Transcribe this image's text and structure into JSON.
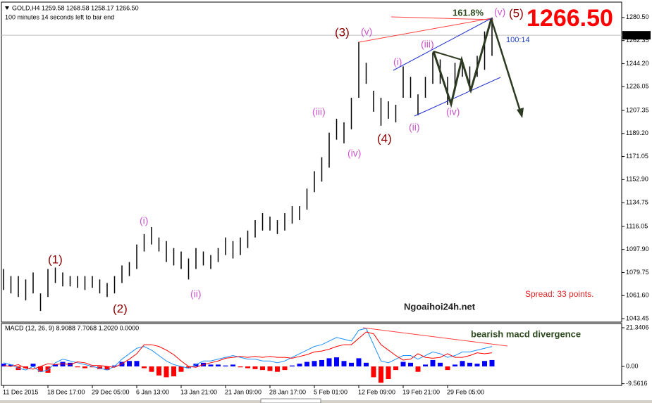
{
  "chart_data": [
    {
      "type": "range",
      "title": "GOLD,H4  1259.58 1268.58 1258.17 1266.50",
      "subtitle": "100 minutes 14 seconds left to bar end",
      "color": "#000000",
      "high": [
        1082.5,
        1077,
        1077,
        1074.3,
        1079.8,
        1063.3,
        1082.5,
        1083.6,
        1079.8,
        1077,
        1077,
        1077,
        1077,
        1074.3,
        1071.5,
        1077,
        1085.3,
        1088,
        1101.8,
        1110,
        1115.5,
        1107.3,
        1104.5,
        1099,
        1096.3,
        1090.8,
        1099,
        1096.3,
        1093.5,
        1099,
        1107.3,
        1104.5,
        1107.3,
        1112.8,
        1121,
        1126.5,
        1123.8,
        1121,
        1126.5,
        1132,
        1132,
        1145.8,
        1159.5,
        1170.5,
        1189.8,
        1200.8,
        1198,
        1217.3,
        1261.3,
        1244.8,
        1222.8,
        1217.3,
        1214.5,
        1211.8,
        1242,
        1233.8,
        1220,
        1233.8,
        1253,
        1247.5,
        1233.8,
        1244.8,
        1247.5,
        1242,
        1250.3,
        1269.5,
        1280.5
      ],
      "low": [
        1066,
        1063.3,
        1060.5,
        1057.8,
        1063.3,
        1049.5,
        1060.5,
        1071.5,
        1068.8,
        1068.8,
        1067.7,
        1066,
        1067.7,
        1063.3,
        1060.5,
        1063.3,
        1071.5,
        1077,
        1082.5,
        1096.3,
        1101.8,
        1096.3,
        1088,
        1085.3,
        1082.5,
        1074.3,
        1082.5,
        1085.3,
        1082.5,
        1088,
        1093.5,
        1090.8,
        1093.5,
        1099,
        1107.3,
        1112.8,
        1112.8,
        1110,
        1112.8,
        1118.3,
        1121,
        1129.3,
        1143,
        1151.3,
        1162.3,
        1184.3,
        1181.5,
        1192.5,
        1217.3,
        1228.3,
        1206.3,
        1195.3,
        1200.8,
        1198,
        1217.3,
        1217.3,
        1203.5,
        1217.3,
        1228.3,
        1228.3,
        1211.8,
        1222.8,
        1233.8,
        1222.8,
        1233.8,
        1239.3,
        1250.3
      ],
      "ylim": [
        1040.7,
        1291.5
      ],
      "yticks": [
        {
          "value": 1280.5,
          "label": "1280.50"
        },
        1262.35,
        {
          "value": 1244.2,
          "label": "1244.20"
        },
        1226.05,
        1207.35,
        {
          "value": 1189.2,
          "label": "1189.20"
        },
        1171.05,
        {
          "value": 1152.9,
          "label": "1152.90"
        },
        1134.75,
        1116.05,
        {
          "value": 1097.9,
          "label": "1097.90"
        },
        1079.75,
        {
          "value": 1061.6,
          "label": "1061.60"
        },
        1043.45
      ],
      "last_price": {
        "value": 1266.5,
        "label": "1266.50"
      },
      "annotations": [
        "(1)",
        "(2)",
        "(3)",
        "(4)",
        "(5)",
        "(v)",
        "(i)",
        "(ii)",
        "(iii)",
        "(iv)",
        "(i)",
        "(ii)",
        "(iii)",
        "(iv)",
        "(v)",
        "161.8%",
        "1266.50",
        "100:14",
        "Ngoaihoi24h.net",
        "Spread: 33 points."
      ]
    },
    {
      "type": "macd",
      "title": "MACD (12, 26, 9) 8.9088 7.7068 1.2020 0.0000",
      "categories": [
        "11 Dec 2015",
        null,
        null,
        null,
        null,
        null,
        "18 Dec 17:00",
        null,
        null,
        null,
        null,
        null,
        "29 Dec 05:00",
        null,
        null,
        null,
        null,
        null,
        "6 Jan 13:00",
        null,
        null,
        null,
        null,
        null,
        "13 Jan 21:00",
        null,
        null,
        null,
        null,
        null,
        "21 Jan 09:00",
        null,
        null,
        null,
        null,
        null,
        "28 Jan 17:00",
        null,
        null,
        null,
        null,
        null,
        "5 Feb 01:00",
        null,
        null,
        null,
        null,
        null,
        "12 Feb 09:00",
        null,
        null,
        null,
        null,
        null,
        "19 Feb 21:00",
        null,
        null,
        null,
        null,
        null,
        "29 Feb 05:00",
        null,
        null,
        null,
        null,
        null,
        null
      ],
      "histogram": [
        1.5,
        1,
        -2,
        -1,
        1.5,
        -3,
        -3.5,
        1,
        2.5,
        2,
        -0.5,
        -1,
        -0.5,
        -1.5,
        -2,
        0.5,
        2.5,
        3,
        3,
        -1,
        -3,
        -5,
        -6,
        -5.5,
        -3,
        -1,
        1.5,
        2,
        1,
        1,
        0.5,
        1,
        -0.5,
        -1,
        -1.5,
        -2,
        -2.5,
        -3,
        -2,
        0.5,
        1.5,
        2.5,
        3,
        3.5,
        4.5,
        5,
        3,
        2,
        4.5,
        2,
        -6,
        -9,
        -7,
        -2,
        2.5,
        2,
        -3,
        1,
        3.5,
        2,
        -2,
        1,
        3,
        2,
        1.5,
        3,
        3.5
      ],
      "positive_color": "#0000ff",
      "negative_color": "#ff0000",
      "macd": [
        2,
        1,
        -1,
        -2,
        0,
        -3,
        -2,
        2,
        4,
        3,
        2,
        1,
        0,
        -1,
        -2,
        0,
        4,
        7,
        10,
        11,
        9,
        6,
        3,
        1,
        0,
        -1,
        1,
        3,
        3,
        4,
        5,
        6,
        5,
        4,
        4,
        3,
        3,
        2,
        3,
        5,
        7,
        9,
        11,
        12,
        14,
        16,
        15,
        14,
        20,
        21,
        12,
        3,
        2,
        4,
        6,
        6,
        4,
        6,
        8,
        7,
        5,
        6,
        8,
        8,
        9,
        10,
        11
      ],
      "macd_color": "#1e90ff",
      "signal": [
        0.5,
        0,
        1,
        -1,
        -1.5,
        0,
        1.5,
        1,
        1.5,
        1,
        2.5,
        2,
        0.5,
        0.5,
        0,
        -0.5,
        1.5,
        4,
        7,
        12,
        12,
        11,
        9,
        6.5,
        3,
        0,
        -0.5,
        1,
        2,
        3,
        4.5,
        5,
        5.5,
        5,
        5.5,
        5,
        5.5,
        5,
        5,
        4.5,
        5.5,
        6.5,
        8,
        8.5,
        9.5,
        11,
        12,
        12,
        15.5,
        19,
        18,
        12,
        9,
        6,
        3.5,
        4,
        7,
        5,
        4.5,
        5,
        7,
        5,
        5,
        6,
        7.5,
        7,
        7.5
      ],
      "signal_color": "#ff0000",
      "ylim": [
        -10.5,
        22.9
      ],
      "yticks": [
        21.3406,
        {
          "value": 0,
          "label": "0.00"
        },
        -9.5616
      ],
      "annotations": [
        "bearish macd divergence"
      ]
    }
  ]
}
